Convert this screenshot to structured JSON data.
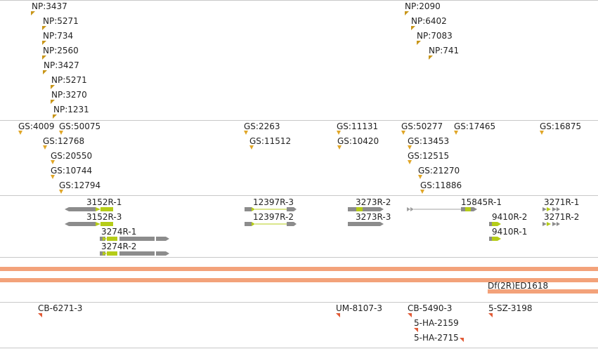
{
  "np_track": [
    {
      "label": "NP:3437"
    },
    {
      "label": "NP:5271"
    },
    {
      "label": "NP:734"
    },
    {
      "label": "NP:2560"
    },
    {
      "label": "NP:3427"
    },
    {
      "label": "NP:5271"
    },
    {
      "label": "NP:3270"
    },
    {
      "label": "NP:1231"
    },
    {
      "label": "NP:2090"
    },
    {
      "label": "NP:6402"
    },
    {
      "label": "NP:7083"
    },
    {
      "label": "NP:741"
    }
  ],
  "gs_track": [
    {
      "label": "GS:4009"
    },
    {
      "label": "GS:50075"
    },
    {
      "label": "GS:12768"
    },
    {
      "label": "GS:20550"
    },
    {
      "label": "GS:10744"
    },
    {
      "label": "GS:12794"
    },
    {
      "label": "GS:2263"
    },
    {
      "label": "GS:11512"
    },
    {
      "label": "GS:11131"
    },
    {
      "label": "GS:10420"
    },
    {
      "label": "GS:50277"
    },
    {
      "label": "GS:13453"
    },
    {
      "label": "GS:12515"
    },
    {
      "label": "GS:21270"
    },
    {
      "label": "GS:11886"
    },
    {
      "label": "GS:17465"
    },
    {
      "label": "GS:16875"
    }
  ],
  "transcripts": [
    {
      "label": "3152R-1"
    },
    {
      "label": "3152R-3"
    },
    {
      "label": "3274R-1"
    },
    {
      "label": "3274R-2"
    },
    {
      "label": "12397R-3"
    },
    {
      "label": "12397R-2"
    },
    {
      "label": "3273R-2"
    },
    {
      "label": "3273R-3"
    },
    {
      "label": "15845R-1"
    },
    {
      "label": "9410R-2"
    },
    {
      "label": "9410R-1"
    },
    {
      "label": "3271R-1"
    },
    {
      "label": "3271R-2"
    }
  ],
  "deficiency": {
    "label": "Df(2R)ED1618"
  },
  "strains": [
    {
      "label": "CB-6271-3"
    },
    {
      "label": "UM-8107-3"
    },
    {
      "label": "CB-5490-3"
    },
    {
      "label": "5-HA-2159"
    },
    {
      "label": "5-HA-2715"
    },
    {
      "label": "5-SZ-3198"
    }
  ],
  "colors": {
    "np_marker": "#c8961a",
    "gs_marker": "#e0a628",
    "strain_marker": "#e25a35",
    "exon": "#8c8c8c",
    "utr": "#b5cc18",
    "intron": "#b5cc18",
    "deficiency_bar": "#f3a27a",
    "separator": "#c8c8c8"
  }
}
